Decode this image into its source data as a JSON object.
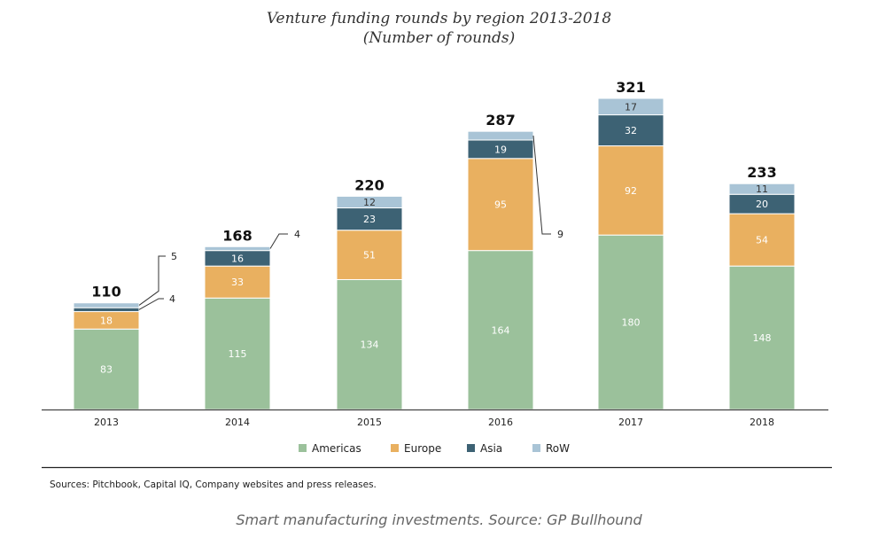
{
  "chart_data": {
    "type": "bar",
    "stacked": true,
    "title": "Venture funding rounds by region 2013-2018",
    "subtitle": "(Number of rounds)",
    "categories": [
      "2013",
      "2014",
      "2015",
      "2016",
      "2017",
      "2018"
    ],
    "series": [
      {
        "name": "Americas",
        "color": "#9bc19b",
        "values": [
          83,
          115,
          134,
          164,
          180,
          148
        ]
      },
      {
        "name": "Europe",
        "color": "#e9b060",
        "values": [
          18,
          33,
          51,
          95,
          92,
          54
        ]
      },
      {
        "name": "Asia",
        "color": "#3d6274",
        "values": [
          4,
          16,
          23,
          19,
          32,
          20
        ]
      },
      {
        "name": "RoW",
        "color": "#a9c4d6",
        "values": [
          5,
          4,
          12,
          9,
          17,
          11
        ]
      }
    ],
    "totals": [
      110,
      168,
      220,
      287,
      321,
      233
    ],
    "ylim": [
      0,
      330
    ],
    "legend_position": "bottom"
  },
  "footer": {
    "sources": "Sources: Pitchbook, Capital IQ, Company websites and press releases.",
    "caption": "Smart manufacturing investments. Source: GP Bullhound"
  }
}
